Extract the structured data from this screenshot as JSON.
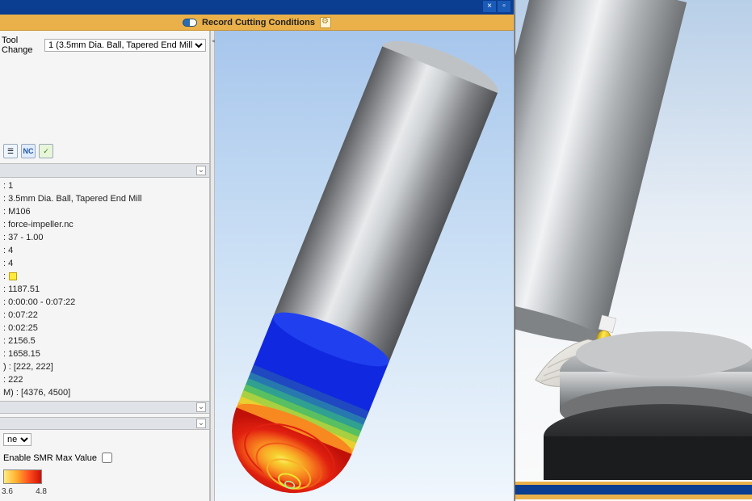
{
  "toolbar": {
    "record_label": "Record Cutting Conditions"
  },
  "tool_change": {
    "label": "Tool Change",
    "selected": "1 (3.5mm Dia. Ball, Tapered End Mill)"
  },
  "info": [
    {
      "text": ": 1"
    },
    {
      "text": ": 3.5mm Dia. Ball, Tapered End Mill"
    },
    {
      "text": ": M106"
    },
    {
      "text": ": force-impeller.nc"
    },
    {
      "text": ": 37 - 1.00"
    },
    {
      "text": ": 4"
    },
    {
      "text": ": 4"
    },
    {
      "text": ":",
      "swatch": true
    },
    {
      "text": ": 1187.51"
    },
    {
      "text": ": 0:00:00 - 0:07:22"
    },
    {
      "text": ": 0:07:22"
    },
    {
      "text": ": 0:02:25"
    },
    {
      "text": ": 2156.5"
    },
    {
      "text": ": 1658.15"
    },
    {
      "text": ")  : [222, 222]"
    },
    {
      "text": ": 222"
    },
    {
      "text": "M) : [4376, 4500]"
    }
  ],
  "options": {
    "dropdown_selected": "ne",
    "enable_smr_label": "Enable SMR Max Value",
    "enable_smr_checked": false
  },
  "gradient": {
    "min": "3.6",
    "max": "4.8",
    "stops": [
      "#ffec80",
      "#ffb030",
      "#ff5020",
      "#d01000"
    ]
  },
  "left_viewport": {
    "tool_body_color": "#9a9ca0",
    "tool_highlight": "#d8dadd",
    "heat_bands": [
      "#1020d0",
      "#1030e8",
      "#2048c0",
      "#2878b0",
      "#30a090",
      "#58c060",
      "#a8d040",
      "#e8d030",
      "#f8b028",
      "#f88820",
      "#f05818",
      "#e02010"
    ]
  },
  "right_viewport": {
    "shank_color": "#b8bcc0",
    "tool_tip_color": "#f2d020",
    "holder_top": "#c8ccce",
    "holder_mid": "#8a8d90",
    "holder_dark": "#2a2c2e",
    "part_color": "#e8e6e0"
  }
}
